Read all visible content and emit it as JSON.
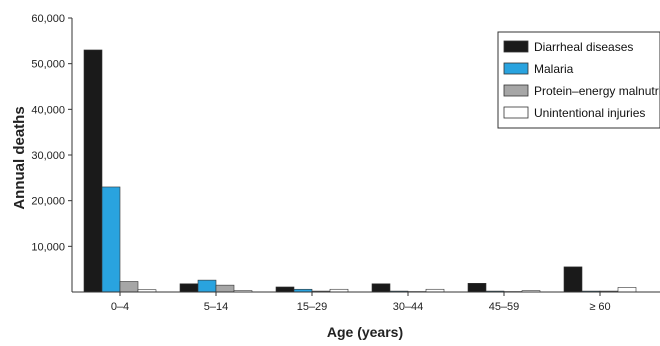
{
  "chart_data": {
    "type": "bar",
    "xlabel": "Age (years)",
    "ylabel": "Annual deaths",
    "ylim": [
      0,
      60000
    ],
    "yticks": [
      "10,000",
      "20,000",
      "30,000",
      "40,000",
      "50,000",
      "60,000"
    ],
    "ytick_values": [
      10000,
      20000,
      30000,
      40000,
      50000,
      60000
    ],
    "categories": [
      "0–4",
      "5–14",
      "15–29",
      "30–44",
      "45–59",
      "≥ 60"
    ],
    "series": [
      {
        "name": "Diarrheal diseases",
        "color": "#1a1a1a",
        "values": [
          53000,
          1800,
          1100,
          1800,
          1900,
          5500
        ]
      },
      {
        "name": "Malaria",
        "color": "#29a3df",
        "values": [
          23000,
          2600,
          600,
          200,
          200,
          200
        ]
      },
      {
        "name": "Protein–energy malnutrition",
        "color": "#a6a6a6",
        "values": [
          2300,
          1500,
          200,
          100,
          100,
          200
        ]
      },
      {
        "name": "Unintentional injuries",
        "color": "#ffffff",
        "values": [
          500,
          300,
          600,
          600,
          300,
          1000
        ]
      }
    ],
    "legend_position": "top-right",
    "grid": false
  }
}
